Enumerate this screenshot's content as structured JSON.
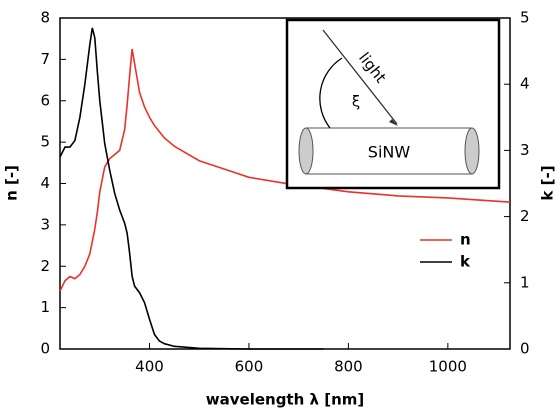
{
  "chart_data": {
    "type": "line",
    "xlabel": "wavelength λ [nm]",
    "ylabel": "n [-]",
    "y2label": "k [-]",
    "annotations": [
      "light",
      "ξ",
      "SiNW"
    ],
    "x": [
      220,
      230,
      240,
      250,
      260,
      270,
      280,
      285,
      290,
      295,
      300,
      310,
      320,
      330,
      340,
      350,
      355,
      360,
      365,
      370,
      380,
      390,
      400,
      410,
      420,
      430,
      450,
      500,
      550,
      600,
      700,
      750,
      800,
      900,
      1000,
      1125
    ],
    "series": [
      {
        "name": "n",
        "color": "#e8322b",
        "values": [
          1.4,
          1.65,
          1.75,
          1.7,
          1.8,
          2.0,
          2.3,
          2.6,
          2.9,
          3.3,
          3.8,
          4.4,
          4.6,
          4.7,
          4.8,
          5.3,
          5.9,
          6.6,
          7.25,
          6.9,
          6.2,
          5.85,
          5.6,
          5.4,
          5.25,
          5.1,
          4.9,
          4.55,
          4.35,
          4.15,
          3.95,
          3.88,
          3.8,
          3.7,
          3.65,
          3.55
        ]
      },
      {
        "name": "k",
        "color": "#000000",
        "axis": "y2",
        "values": [
          2.9,
          3.05,
          3.05,
          3.15,
          3.5,
          4.0,
          4.6,
          4.85,
          4.7,
          4.2,
          3.75,
          3.1,
          2.7,
          2.35,
          2.1,
          1.9,
          1.75,
          1.45,
          1.1,
          0.95,
          0.85,
          0.7,
          0.45,
          0.22,
          0.12,
          0.08,
          0.04,
          0.01,
          0.005,
          0,
          0,
          0,
          null,
          null,
          null,
          null
        ]
      }
    ],
    "xlim": [
      220,
      1125
    ],
    "xticks": [
      400,
      600,
      800,
      1000
    ],
    "ylim": [
      0,
      8
    ],
    "yticks": [
      0,
      1,
      2,
      3,
      4,
      5,
      6,
      7,
      8
    ],
    "y2lim": [
      0,
      5
    ],
    "y2ticks": [
      0,
      1,
      2,
      3,
      4,
      5
    ],
    "legend": "right"
  }
}
